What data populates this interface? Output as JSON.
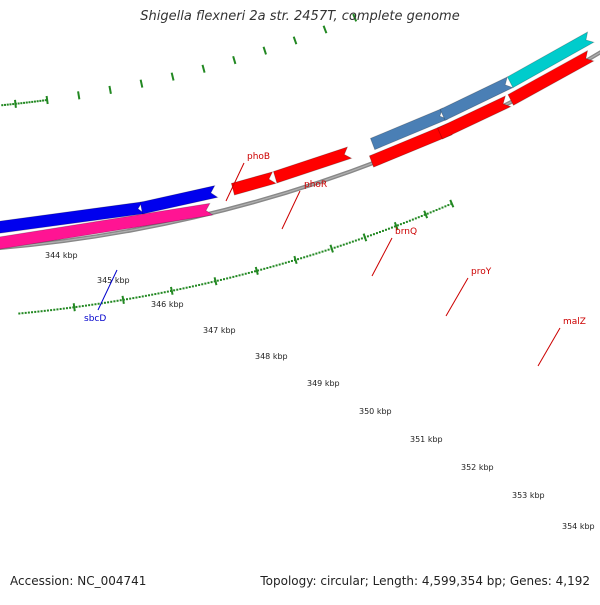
{
  "title": "Shigella flexneri 2a str. 2457T, complete genome",
  "footer": {
    "accession": "Accession: NC_004741",
    "summary": "Topology: circular; Length: 4,599,354 bp; Genes: 4,192"
  },
  "ticks": [
    {
      "label": "344 kbp"
    },
    {
      "label": "345 kbp"
    },
    {
      "label": "346 kbp"
    },
    {
      "label": "347 kbp"
    },
    {
      "label": "348 kbp"
    },
    {
      "label": "349 kbp"
    },
    {
      "label": "350 kbp"
    },
    {
      "label": "351 kbp"
    },
    {
      "label": "352 kbp"
    },
    {
      "label": "353 kbp"
    },
    {
      "label": "354 kbp"
    }
  ],
  "gene_labels": [
    {
      "label": "phoB",
      "color": "#cc0000"
    },
    {
      "label": "phoR",
      "color": "#cc0000"
    },
    {
      "label": "brnQ",
      "color": "#cc0000"
    },
    {
      "label": "proY",
      "color": "#cc0000"
    },
    {
      "label": "malZ",
      "color": "#cc0000"
    },
    {
      "label": "sbcD",
      "color": "#0000cc"
    }
  ],
  "colors": {
    "backbone": "#888888",
    "tick": "#228822",
    "gene_red": "#ff0000",
    "gene_blue": "#0000ee",
    "gene_pink": "#ff1493",
    "gene_steel": "#4a7fb5",
    "gene_cyan": "#00cccc"
  }
}
